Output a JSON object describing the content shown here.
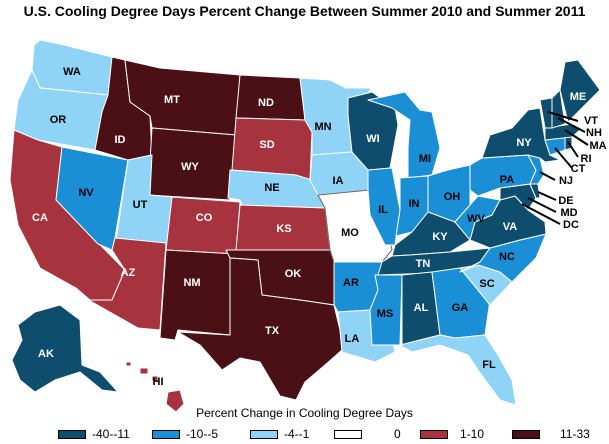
{
  "title": "U.S. Cooling Degree Days Percent Change Between Summer 2010 and Summer 2011",
  "legend": {
    "title": "Percent Change in Cooling Degree Days",
    "bins": [
      {
        "label": "-40--11",
        "color": "#0e4d6e"
      },
      {
        "label": "-10--5",
        "color": "#1b8fd6"
      },
      {
        "label": "-4--1",
        "color": "#8fd3f7"
      },
      {
        "label": "0",
        "color": "#ffffff"
      },
      {
        "label": "1-10",
        "color": "#a7333f"
      },
      {
        "label": "11-33",
        "color": "#4a1016"
      }
    ]
  },
  "states": [
    {
      "abbr": "WA",
      "bin": "-4--1"
    },
    {
      "abbr": "OR",
      "bin": "-4--1"
    },
    {
      "abbr": "CA",
      "bin": "1-10"
    },
    {
      "abbr": "NV",
      "bin": "-10--5"
    },
    {
      "abbr": "ID",
      "bin": "11-33"
    },
    {
      "abbr": "MT",
      "bin": "11-33"
    },
    {
      "abbr": "WY",
      "bin": "11-33"
    },
    {
      "abbr": "UT",
      "bin": "-4--1"
    },
    {
      "abbr": "AZ",
      "bin": "1-10"
    },
    {
      "abbr": "CO",
      "bin": "1-10"
    },
    {
      "abbr": "NM",
      "bin": "11-33"
    },
    {
      "abbr": "ND",
      "bin": "11-33"
    },
    {
      "abbr": "SD",
      "bin": "1-10"
    },
    {
      "abbr": "NE",
      "bin": "-4--1"
    },
    {
      "abbr": "KS",
      "bin": "1-10"
    },
    {
      "abbr": "OK",
      "bin": "11-33"
    },
    {
      "abbr": "TX",
      "bin": "11-33"
    },
    {
      "abbr": "MN",
      "bin": "-4--1"
    },
    {
      "abbr": "IA",
      "bin": "-4--1"
    },
    {
      "abbr": "MO",
      "bin": "0"
    },
    {
      "abbr": "AR",
      "bin": "-10--5"
    },
    {
      "abbr": "LA",
      "bin": "-4--1"
    },
    {
      "abbr": "WI",
      "bin": "-40--11"
    },
    {
      "abbr": "IL",
      "bin": "-10--5"
    },
    {
      "abbr": "MI",
      "bin": "-10--5"
    },
    {
      "abbr": "IN",
      "bin": "-10--5"
    },
    {
      "abbr": "OH",
      "bin": "-10--5"
    },
    {
      "abbr": "KY",
      "bin": "-40--11"
    },
    {
      "abbr": "TN",
      "bin": "-40--11"
    },
    {
      "abbr": "MS",
      "bin": "-10--5"
    },
    {
      "abbr": "AL",
      "bin": "-40--11"
    },
    {
      "abbr": "GA",
      "bin": "-10--5"
    },
    {
      "abbr": "FL",
      "bin": "-4--1"
    },
    {
      "abbr": "SC",
      "bin": "-4--1"
    },
    {
      "abbr": "NC",
      "bin": "-10--5"
    },
    {
      "abbr": "VA",
      "bin": "-40--11"
    },
    {
      "abbr": "WV",
      "bin": "-10--5"
    },
    {
      "abbr": "PA",
      "bin": "-10--5"
    },
    {
      "abbr": "NY",
      "bin": "-40--11"
    },
    {
      "abbr": "VT",
      "bin": "-40--11"
    },
    {
      "abbr": "NH",
      "bin": "-40--11"
    },
    {
      "abbr": "ME",
      "bin": "-40--11"
    },
    {
      "abbr": "MA",
      "bin": "-40--11"
    },
    {
      "abbr": "RI",
      "bin": "-40--11"
    },
    {
      "abbr": "CT",
      "bin": "-10--5"
    },
    {
      "abbr": "NJ",
      "bin": "-10--5"
    },
    {
      "abbr": "DE",
      "bin": "-40--11"
    },
    {
      "abbr": "MD",
      "bin": "-40--11"
    },
    {
      "abbr": "DC",
      "bin": "-40--11"
    },
    {
      "abbr": "AK",
      "bin": "-40--11"
    },
    {
      "abbr": "HI",
      "bin": "1-10"
    }
  ]
}
